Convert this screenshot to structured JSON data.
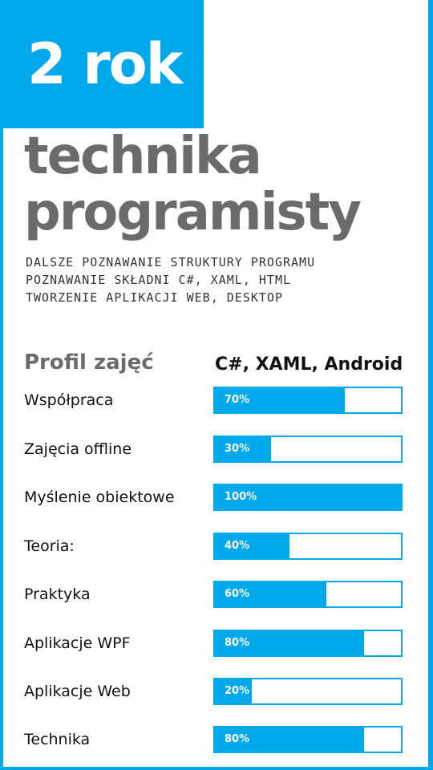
{
  "badge": {
    "text": "2 rok"
  },
  "title": {
    "line1": "technika",
    "line2": "programisty"
  },
  "description": [
    "DALSZE POZNAWANIE STRUKTURY PROGRAMU",
    "POZNAWANIE SKŁADNI C#, XAML, HTML",
    "TWORZENIE APLIKACJI WEB, DESKTOP"
  ],
  "profile": {
    "title": "Profil zajęć",
    "technologies": "C#, XAML, Android",
    "items": [
      {
        "label": "Współpraca",
        "percent_label": "70%",
        "value": 70
      },
      {
        "label": "Zajęcia offline",
        "percent_label": "30%",
        "value": 30
      },
      {
        "label": "Myślenie obiektowe",
        "percent_label": "100%",
        "value": 100
      },
      {
        "label": "Teoria:",
        "percent_label": "40%",
        "value": 40
      },
      {
        "label": "Praktyka",
        "percent_label": "60%",
        "value": 60
      },
      {
        "label": "Aplikacje WPF",
        "percent_label": "80%",
        "value": 80
      },
      {
        "label": "Aplikacje Web",
        "percent_label": "20%",
        "value": 20
      },
      {
        "label": "Technika",
        "percent_label": "80%",
        "value": 80
      }
    ]
  },
  "colors": {
    "accent": "#00a8ec",
    "title_gray": "#6b6b6b",
    "text": "#111111"
  }
}
